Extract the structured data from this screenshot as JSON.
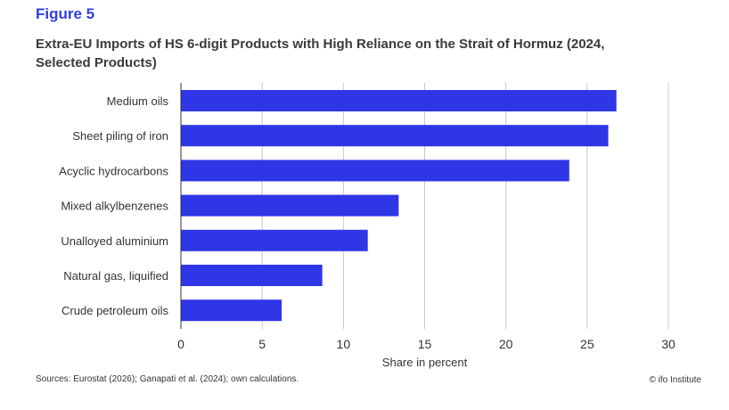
{
  "figure_label": "Figure 5",
  "footer": {
    "source": "Sources: Eurostat (2026); Ganapati et al. (2024); own calculations.",
    "credit": "© ifo Institute"
  },
  "colors": {
    "bar": "#2f36e6",
    "grid": "#c8c8c8",
    "accent": "#2f3ee0"
  },
  "chart_data": {
    "type": "bar",
    "orientation": "horizontal",
    "title": "Extra-EU Imports of HS 6-digit Products with High Reliance on the Strait of Hormuz (2024, Selected Products)",
    "categories": [
      "Medium oils",
      "Sheet piling of iron",
      "Acyclic hydrocarbons",
      "Mixed alkylbenzenes",
      "Unalloyed aluminium",
      "Natural gas, liquified",
      "Crude petroleum oils"
    ],
    "values": [
      26.8,
      26.3,
      23.9,
      13.4,
      11.5,
      8.7,
      6.2
    ],
    "xlabel": "Share in percent",
    "ylabel": "",
    "xlim": [
      0,
      30
    ],
    "xticks": [
      "0",
      "5",
      "10",
      "15",
      "20",
      "25",
      "30"
    ],
    "grid": "vertical"
  }
}
